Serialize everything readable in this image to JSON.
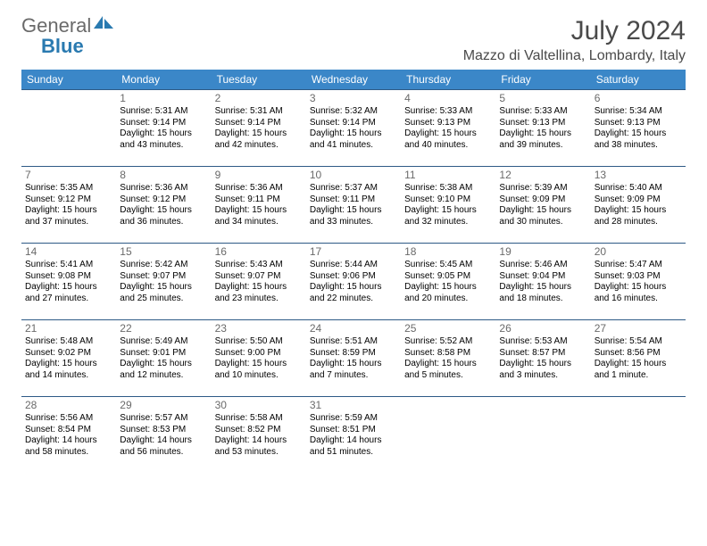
{
  "logo": {
    "part1": "General",
    "part2": "Blue"
  },
  "title": "July 2024",
  "location": "Mazzo di Valtellina, Lombardy, Italy",
  "daysOfWeek": [
    "Sunday",
    "Monday",
    "Tuesday",
    "Wednesday",
    "Thursday",
    "Friday",
    "Saturday"
  ],
  "weeks": [
    [
      null,
      {
        "n": "1",
        "sr": "5:31 AM",
        "ss": "9:14 PM",
        "dl": "15 hours and 43 minutes."
      },
      {
        "n": "2",
        "sr": "5:31 AM",
        "ss": "9:14 PM",
        "dl": "15 hours and 42 minutes."
      },
      {
        "n": "3",
        "sr": "5:32 AM",
        "ss": "9:14 PM",
        "dl": "15 hours and 41 minutes."
      },
      {
        "n": "4",
        "sr": "5:33 AM",
        "ss": "9:13 PM",
        "dl": "15 hours and 40 minutes."
      },
      {
        "n": "5",
        "sr": "5:33 AM",
        "ss": "9:13 PM",
        "dl": "15 hours and 39 minutes."
      },
      {
        "n": "6",
        "sr": "5:34 AM",
        "ss": "9:13 PM",
        "dl": "15 hours and 38 minutes."
      }
    ],
    [
      {
        "n": "7",
        "sr": "5:35 AM",
        "ss": "9:12 PM",
        "dl": "15 hours and 37 minutes."
      },
      {
        "n": "8",
        "sr": "5:36 AM",
        "ss": "9:12 PM",
        "dl": "15 hours and 36 minutes."
      },
      {
        "n": "9",
        "sr": "5:36 AM",
        "ss": "9:11 PM",
        "dl": "15 hours and 34 minutes."
      },
      {
        "n": "10",
        "sr": "5:37 AM",
        "ss": "9:11 PM",
        "dl": "15 hours and 33 minutes."
      },
      {
        "n": "11",
        "sr": "5:38 AM",
        "ss": "9:10 PM",
        "dl": "15 hours and 32 minutes."
      },
      {
        "n": "12",
        "sr": "5:39 AM",
        "ss": "9:09 PM",
        "dl": "15 hours and 30 minutes."
      },
      {
        "n": "13",
        "sr": "5:40 AM",
        "ss": "9:09 PM",
        "dl": "15 hours and 28 minutes."
      }
    ],
    [
      {
        "n": "14",
        "sr": "5:41 AM",
        "ss": "9:08 PM",
        "dl": "15 hours and 27 minutes."
      },
      {
        "n": "15",
        "sr": "5:42 AM",
        "ss": "9:07 PM",
        "dl": "15 hours and 25 minutes."
      },
      {
        "n": "16",
        "sr": "5:43 AM",
        "ss": "9:07 PM",
        "dl": "15 hours and 23 minutes."
      },
      {
        "n": "17",
        "sr": "5:44 AM",
        "ss": "9:06 PM",
        "dl": "15 hours and 22 minutes."
      },
      {
        "n": "18",
        "sr": "5:45 AM",
        "ss": "9:05 PM",
        "dl": "15 hours and 20 minutes."
      },
      {
        "n": "19",
        "sr": "5:46 AM",
        "ss": "9:04 PM",
        "dl": "15 hours and 18 minutes."
      },
      {
        "n": "20",
        "sr": "5:47 AM",
        "ss": "9:03 PM",
        "dl": "15 hours and 16 minutes."
      }
    ],
    [
      {
        "n": "21",
        "sr": "5:48 AM",
        "ss": "9:02 PM",
        "dl": "15 hours and 14 minutes."
      },
      {
        "n": "22",
        "sr": "5:49 AM",
        "ss": "9:01 PM",
        "dl": "15 hours and 12 minutes."
      },
      {
        "n": "23",
        "sr": "5:50 AM",
        "ss": "9:00 PM",
        "dl": "15 hours and 10 minutes."
      },
      {
        "n": "24",
        "sr": "5:51 AM",
        "ss": "8:59 PM",
        "dl": "15 hours and 7 minutes."
      },
      {
        "n": "25",
        "sr": "5:52 AM",
        "ss": "8:58 PM",
        "dl": "15 hours and 5 minutes."
      },
      {
        "n": "26",
        "sr": "5:53 AM",
        "ss": "8:57 PM",
        "dl": "15 hours and 3 minutes."
      },
      {
        "n": "27",
        "sr": "5:54 AM",
        "ss": "8:56 PM",
        "dl": "15 hours and 1 minute."
      }
    ],
    [
      {
        "n": "28",
        "sr": "5:56 AM",
        "ss": "8:54 PM",
        "dl": "14 hours and 58 minutes."
      },
      {
        "n": "29",
        "sr": "5:57 AM",
        "ss": "8:53 PM",
        "dl": "14 hours and 56 minutes."
      },
      {
        "n": "30",
        "sr": "5:58 AM",
        "ss": "8:52 PM",
        "dl": "14 hours and 53 minutes."
      },
      {
        "n": "31",
        "sr": "5:59 AM",
        "ss": "8:51 PM",
        "dl": "14 hours and 51 minutes."
      },
      null,
      null,
      null
    ]
  ],
  "labels": {
    "sunrise": "Sunrise:",
    "sunset": "Sunset:",
    "daylight": "Daylight:"
  },
  "style": {
    "headerBg": "#3b87c8",
    "headerText": "#ffffff",
    "cellBorder": "#2e5a86",
    "dayNumColor": "#6a6a6a",
    "titleColor": "#4a4a4a",
    "logoGray": "#6a6a6a",
    "logoBlue": "#2a7ab0"
  }
}
